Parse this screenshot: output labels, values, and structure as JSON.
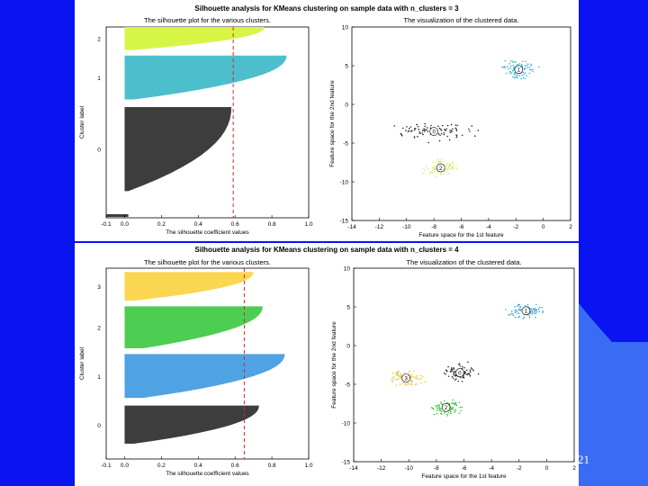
{
  "slide": {
    "page_number": "21"
  },
  "colors": {
    "background": "#0a14f0",
    "accent_light_blue": "#3a6bf5",
    "panel": "#ffffff"
  },
  "figures": [
    {
      "suptitle": "Silhouette analysis for KMeans clustering on sample data with n_clusters = 3",
      "silhouette": {
        "title": "The silhouette plot for the various clusters.",
        "xlabel": "The silhouette coefficient values",
        "ylabel": "Cluster label",
        "xticks": [
          "-0.1",
          "0.0",
          "0.2",
          "0.4",
          "0.6",
          "0.8",
          "1.0"
        ],
        "cluster_labels": [
          "0",
          "1",
          "2"
        ],
        "avg_score": 0.59
      },
      "scatter": {
        "title": "The visualization of the clustered data.",
        "xlabel": "Feature space for the 1st feature",
        "ylabel": "Feature space for the 2nd feature",
        "xticks": [
          "-14",
          "-12",
          "-10",
          "-8",
          "-6",
          "-4",
          "-2",
          "0",
          "2"
        ],
        "yticks": [
          "10",
          "5",
          "0",
          "-5",
          "-10",
          "-15"
        ],
        "centers": [
          {
            "label": "0",
            "x": -8.0,
            "y": -3.5
          },
          {
            "label": "1",
            "x": -1.8,
            "y": 4.5
          },
          {
            "label": "2",
            "x": -7.5,
            "y": -8.2
          }
        ]
      }
    },
    {
      "suptitle": "Silhouette analysis for KMeans clustering on sample data with n_clusters = 4",
      "silhouette": {
        "title": "The silhouette plot for the various clusters.",
        "xlabel": "The silhouette coefficient values",
        "ylabel": "Cluster label",
        "xticks": [
          "-0.1",
          "0.0",
          "0.2",
          "0.4",
          "0.6",
          "0.8",
          "1.0"
        ],
        "cluster_labels": [
          "0",
          "1",
          "2",
          "3"
        ],
        "avg_score": 0.65
      },
      "scatter": {
        "title": "The visualization of the clustered data.",
        "xlabel": "Feature space for the 1st feature",
        "ylabel": "Feature space for the 2nd feature",
        "xticks": [
          "-14",
          "-12",
          "-10",
          "-8",
          "-6",
          "-4",
          "-2",
          "0",
          "2"
        ],
        "yticks": [
          "10",
          "5",
          "0",
          "-5",
          "-10",
          "-15"
        ],
        "centers": [
          {
            "label": "0",
            "x": -6.3,
            "y": -3.5
          },
          {
            "label": "1",
            "x": -1.5,
            "y": 4.5
          },
          {
            "label": "2",
            "x": -7.3,
            "y": -8.0
          },
          {
            "label": "3",
            "x": -10.2,
            "y": -4.2
          }
        ]
      }
    }
  ]
}
